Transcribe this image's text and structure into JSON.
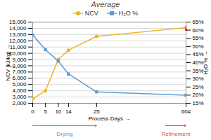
{
  "chart_data": {
    "type": "line",
    "title": "Average",
    "x": [
      0,
      5,
      10,
      14,
      25,
      60
    ],
    "xlabel": "Process Days",
    "ylabel": "NCV [kJ/kg]",
    "y2label": "H₂O %",
    "xlim": [
      0,
      60
    ],
    "xticks": [
      0,
      5,
      10,
      14,
      25,
      {
        "value": 60,
        "label": "60#"
      }
    ],
    "ylim": [
      2000,
      15000
    ],
    "yticks": [
      {
        "value": 2000,
        "label": "2,000"
      },
      {
        "value": 3000,
        "label": "3,000"
      },
      {
        "value": 4000,
        "label": "4,000"
      },
      {
        "value": 5000,
        "label": "5,000"
      },
      {
        "value": 6000,
        "label": "6,000"
      },
      {
        "value": 7000,
        "label": "7,000"
      },
      {
        "value": 8000,
        "label": "8,000"
      },
      {
        "value": 9000,
        "label": "9,000"
      },
      {
        "value": 10000,
        "label": "10,000"
      },
      {
        "value": 11000,
        "label": "11,000"
      },
      {
        "value": 12000,
        "label": "12,000"
      },
      {
        "value": 13000,
        "label": "13,000"
      },
      {
        "value": 14000,
        "label": "14,000"
      },
      {
        "value": 15000,
        "label": "15,000"
      }
    ],
    "y2lim": [
      15,
      65
    ],
    "y2ticks": [
      {
        "value": 15,
        "label": "15%"
      },
      {
        "value": 20,
        "label": "20%"
      },
      {
        "value": 25,
        "label": "25%"
      },
      {
        "value": 30,
        "label": "30%"
      },
      {
        "value": 35,
        "label": "35%"
      },
      {
        "value": 40,
        "label": "40%"
      },
      {
        "value": 45,
        "label": "45%"
      },
      {
        "value": 50,
        "label": "50%"
      },
      {
        "value": 55,
        "label": "55%"
      },
      {
        "value": 60,
        "label": "60%"
      },
      {
        "value": 65,
        "label": "65%"
      }
    ],
    "grid": true,
    "legend": "top",
    "series": [
      {
        "name": "NCV",
        "color": "#f0b429",
        "marker": "circle",
        "values": [
          2700,
          4000,
          9000,
          10500,
          12700,
          14100
        ]
      },
      {
        "name": "H₂O %",
        "color": "#5b9bd5",
        "marker": "square",
        "axis": "y2",
        "values": [
          57,
          48,
          41,
          33,
          22,
          20
        ]
      }
    ],
    "arrows": [
      {
        "x": 60,
        "y": [
          14400,
          13600
        ],
        "color": "red"
      }
    ],
    "annotations": [
      {
        "text": "Drying",
        "x": [
          0,
          25
        ],
        "color": "#5b9bd5"
      },
      {
        "text": "Refinement",
        "x": [
          52,
          60
        ],
        "color": "#e74c3c"
      }
    ]
  }
}
